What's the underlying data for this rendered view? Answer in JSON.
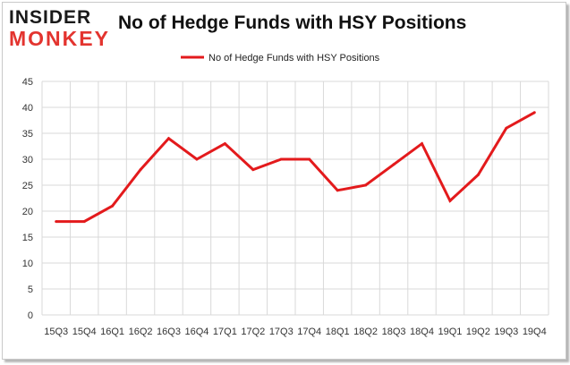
{
  "logo": {
    "top": "INSIDER",
    "bottom": "MONKEY"
  },
  "chart_data": {
    "type": "line",
    "title": "No of Hedge Funds with HSY Positions",
    "categories": [
      "15Q3",
      "15Q4",
      "16Q1",
      "16Q2",
      "16Q3",
      "16Q4",
      "17Q1",
      "17Q2",
      "17Q3",
      "17Q4",
      "18Q1",
      "18Q2",
      "18Q3",
      "18Q4",
      "19Q1",
      "19Q2",
      "19Q3",
      "19Q4"
    ],
    "series": [
      {
        "name": "No of Hedge Funds with HSY Positions",
        "values": [
          18,
          18,
          21,
          28,
          34,
          30,
          33,
          28,
          30,
          30,
          24,
          25,
          29,
          33,
          22,
          27,
          36,
          39
        ],
        "color": "#e31a1c"
      }
    ],
    "ylim": [
      0,
      45
    ],
    "yticks": [
      0,
      5,
      10,
      15,
      20,
      25,
      30,
      35,
      40,
      45
    ],
    "grid": true,
    "legend_position": "top-center"
  }
}
